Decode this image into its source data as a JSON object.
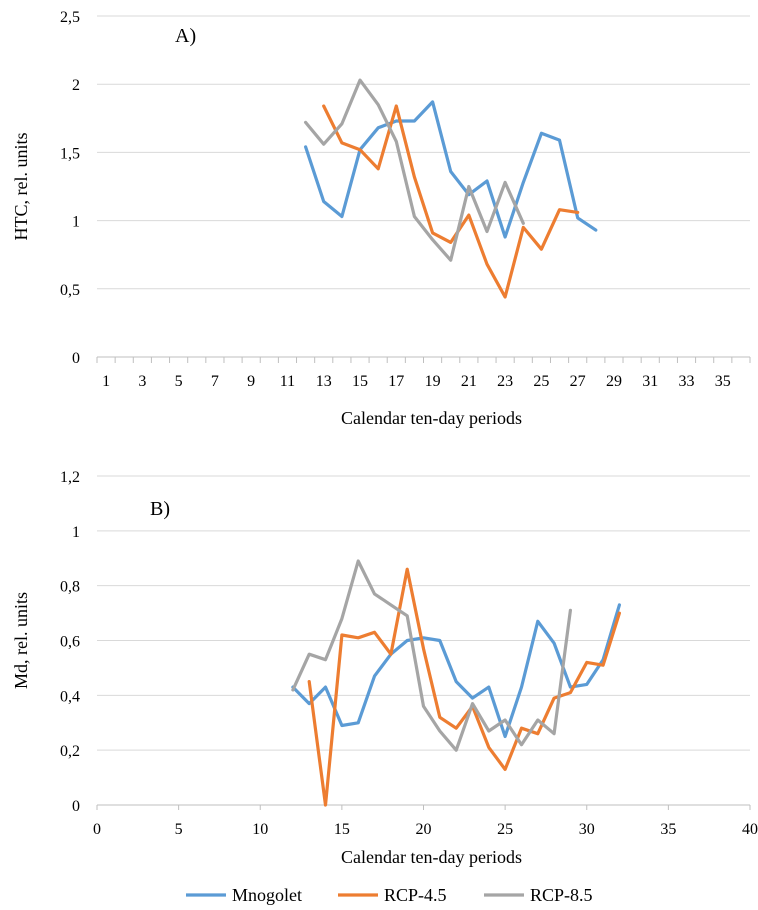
{
  "chart_data": [
    {
      "type": "line",
      "panel_label": "A)",
      "title": "",
      "xlabel": "Calendar ten-day periods",
      "ylabel": "HTC, rel. units",
      "x_ticks": [
        1,
        3,
        5,
        7,
        9,
        11,
        13,
        15,
        17,
        19,
        21,
        23,
        25,
        27,
        29,
        31,
        33,
        35
      ],
      "xlim": [
        0.5,
        36.5
      ],
      "ylim": [
        0,
        2.5
      ],
      "y_ticks": [
        "0",
        "0,5",
        "1",
        "1,5",
        "2",
        "2,5"
      ],
      "grid": "horizontal",
      "series": [
        {
          "name": "Mnogolet",
          "color": "#5b9bd5",
          "x": [
            12,
            13,
            14,
            15,
            16,
            17,
            18,
            19,
            20,
            21,
            22,
            23,
            24,
            25,
            26,
            27,
            28
          ],
          "y": [
            1.54,
            1.14,
            1.03,
            1.52,
            1.68,
            1.73,
            1.73,
            1.87,
            1.36,
            1.19,
            1.29,
            0.88,
            1.28,
            1.64,
            1.59,
            1.02,
            0.93
          ]
        },
        {
          "name": "RCP-4.5",
          "color": "#ed7d31",
          "x": [
            13,
            14,
            15,
            16,
            17,
            18,
            19,
            20,
            21,
            22,
            23,
            24,
            25,
            26,
            27
          ],
          "y": [
            1.84,
            1.57,
            1.52,
            1.38,
            1.84,
            1.32,
            0.91,
            0.84,
            1.04,
            0.68,
            0.44,
            0.95,
            0.79,
            1.08,
            1.06
          ]
        },
        {
          "name": "RCP-8.5",
          "color": "#a5a5a5",
          "x": [
            12,
            13,
            14,
            15,
            16,
            17,
            18,
            19,
            20,
            21,
            22,
            23,
            24
          ],
          "y": [
            1.72,
            1.56,
            1.71,
            2.03,
            1.85,
            1.58,
            1.03,
            0.86,
            0.71,
            1.25,
            0.92,
            1.28,
            0.98
          ]
        }
      ]
    },
    {
      "type": "line",
      "panel_label": "B)",
      "title": "",
      "xlabel": "Calendar ten-day periods",
      "ylabel": "Md, rel. units",
      "x_ticks": [
        0,
        5,
        10,
        15,
        20,
        25,
        30,
        35,
        40
      ],
      "xlim": [
        0,
        40
      ],
      "ylim": [
        0,
        1.2
      ],
      "y_ticks": [
        "0",
        "0,2",
        "0,4",
        "0,6",
        "0,8",
        "1",
        "1,2"
      ],
      "grid": "horizontal",
      "series": [
        {
          "name": "Mnogolet",
          "color": "#5b9bd5",
          "x": [
            12,
            13,
            14,
            15,
            16,
            17,
            18,
            19,
            20,
            21,
            22,
            23,
            24,
            25,
            26,
            27,
            28,
            29,
            30,
            31,
            32
          ],
          "y": [
            0.43,
            0.37,
            0.43,
            0.29,
            0.3,
            0.47,
            0.55,
            0.6,
            0.61,
            0.6,
            0.45,
            0.39,
            0.43,
            0.25,
            0.43,
            0.67,
            0.59,
            0.43,
            0.44,
            0.53,
            0.73
          ]
        },
        {
          "name": "RCP-4.5",
          "color": "#ed7d31",
          "x": [
            13,
            14,
            15,
            16,
            17,
            18,
            19,
            20,
            21,
            22,
            23,
            24,
            25,
            26,
            27,
            28,
            29,
            30,
            31,
            32
          ],
          "y": [
            0.45,
            0.0,
            0.62,
            0.61,
            0.63,
            0.55,
            0.86,
            0.57,
            0.32,
            0.28,
            0.36,
            0.21,
            0.13,
            0.28,
            0.26,
            0.39,
            0.41,
            0.52,
            0.51,
            0.7
          ]
        },
        {
          "name": "RCP-8.5",
          "color": "#a5a5a5",
          "x": [
            12,
            13,
            14,
            15,
            16,
            17,
            18,
            19,
            20,
            21,
            22,
            23,
            24,
            25,
            26,
            27,
            28,
            29
          ],
          "y": [
            0.42,
            0.55,
            0.53,
            0.68,
            0.89,
            0.77,
            0.73,
            0.69,
            0.36,
            0.27,
            0.2,
            0.37,
            0.27,
            0.31,
            0.22,
            0.31,
            0.26,
            0.71
          ]
        }
      ]
    }
  ],
  "legend": {
    "placement": "bottom",
    "items": [
      {
        "label": "Mnogolet",
        "color": "#5b9bd5"
      },
      {
        "label": "RCP-4.5",
        "color": "#ed7d31"
      },
      {
        "label": "RCP-8.5",
        "color": "#a5a5a5"
      }
    ]
  }
}
